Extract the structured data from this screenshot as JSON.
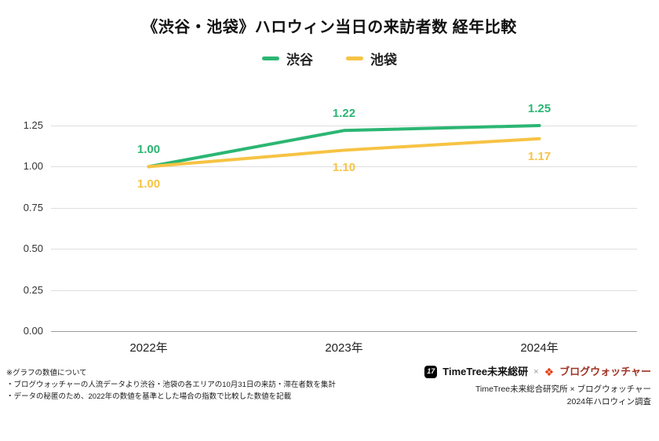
{
  "title": "《渋谷・池袋》ハロウィン当日の来訪者数 経年比較",
  "chart_data": {
    "type": "line",
    "categories": [
      "2022年",
      "2023年",
      "2024年"
    ],
    "series": [
      {
        "name": "渋谷",
        "color": "#2BB673",
        "values": [
          1.0,
          1.22,
          1.25
        ],
        "labels": [
          "1.00",
          "1.22",
          "1.25"
        ],
        "label_position": "above"
      },
      {
        "name": "池袋",
        "color": "#F6C344",
        "values": [
          1.0,
          1.1,
          1.17
        ],
        "labels": [
          "1.00",
          "1.10",
          "1.17"
        ],
        "label_position": "below"
      }
    ],
    "title": "《渋谷・池袋》ハロウィン当日の来訪者数 経年比較",
    "xlabel": "",
    "ylabel": "",
    "ylim": [
      0,
      1.25
    ],
    "yticks": [
      "0.00",
      "0.25",
      "0.50",
      "0.75",
      "1.00",
      "1.25"
    ],
    "grid": true,
    "legend_position": "top"
  },
  "footer": {
    "notes": [
      "※グラフの数値について",
      "・ブログウォッチャーの人流データより渋谷・池袋の各エリアの10月31日の来訪・滞在者数を集計",
      "・データの秘匿のため、2022年の数値を基準とした場合の指数で比較した数値を記載"
    ],
    "credits": {
      "logo1_icon": "17",
      "logo1": "TimeTree未来総研",
      "separator": "×",
      "logo2_icon": "❖",
      "logo2": "ブログウォッチャー",
      "line1": "TimeTree未来総合研究所 × ブログウォッチャー",
      "line2": "2024年ハロウィン調査"
    }
  }
}
